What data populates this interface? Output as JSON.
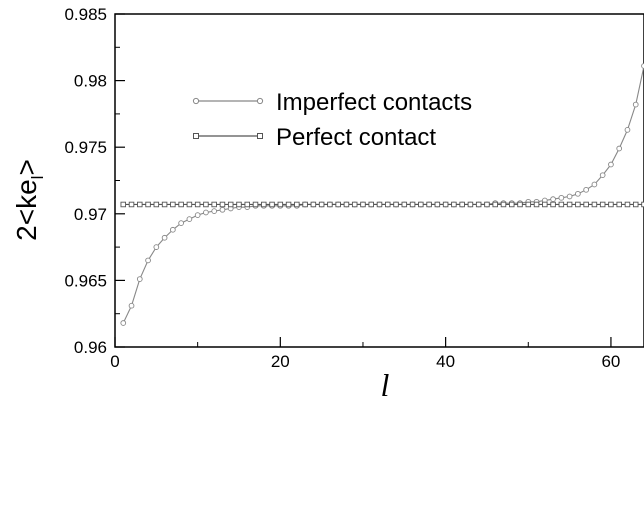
{
  "chart_data": {
    "type": "line",
    "title": "",
    "xlabel": "l",
    "ylabel_main": "2<ke",
    "ylabel_sub": "l",
    "ylabel_end": ">",
    "xlim": [
      0,
      64
    ],
    "ylim": [
      0.96,
      0.985
    ],
    "xticks": [
      0,
      20,
      40,
      60
    ],
    "yticks": [
      0.96,
      0.965,
      0.97,
      0.975,
      0.98,
      0.985
    ],
    "yticks_labels": [
      "0.96",
      "0.965",
      "0.97",
      "0.975",
      "0.98",
      "0.985"
    ],
    "grid": false,
    "legend_position": "top-left",
    "series": [
      {
        "name": "Imperfect contacts",
        "marker": "circle",
        "color": "#888888",
        "x": [
          1,
          2,
          3,
          4,
          5,
          6,
          7,
          8,
          9,
          10,
          11,
          12,
          13,
          14,
          15,
          16,
          17,
          18,
          19,
          20,
          21,
          22,
          23,
          24,
          25,
          26,
          27,
          28,
          29,
          30,
          31,
          32,
          33,
          34,
          35,
          36,
          37,
          38,
          39,
          40,
          41,
          42,
          43,
          44,
          45,
          46,
          47,
          48,
          49,
          50,
          51,
          52,
          53,
          54,
          55,
          56,
          57,
          58,
          59,
          60,
          61,
          62,
          63,
          64
        ],
        "y": [
          0.9618,
          0.9631,
          0.9651,
          0.9665,
          0.9675,
          0.9682,
          0.9688,
          0.9693,
          0.9696,
          0.9699,
          0.9701,
          0.9702,
          0.9703,
          0.9704,
          0.9705,
          0.9705,
          0.9706,
          0.9706,
          0.9706,
          0.9706,
          0.9706,
          0.9706,
          0.9707,
          0.9707,
          0.9707,
          0.9707,
          0.9707,
          0.9707,
          0.9707,
          0.9707,
          0.9707,
          0.9707,
          0.9707,
          0.9707,
          0.9707,
          0.9707,
          0.9707,
          0.9707,
          0.9707,
          0.9707,
          0.9707,
          0.9707,
          0.9707,
          0.9707,
          0.9707,
          0.9708,
          0.9708,
          0.9708,
          0.9708,
          0.9709,
          0.9709,
          0.971,
          0.9711,
          0.9712,
          0.9713,
          0.9715,
          0.9718,
          0.9722,
          0.9729,
          0.9737,
          0.9749,
          0.9763,
          0.9782,
          0.9811
        ]
      },
      {
        "name": "Perfect contact",
        "marker": "square",
        "color": "#555555",
        "x": [
          1,
          2,
          3,
          4,
          5,
          6,
          7,
          8,
          9,
          10,
          11,
          12,
          13,
          14,
          15,
          16,
          17,
          18,
          19,
          20,
          21,
          22,
          23,
          24,
          25,
          26,
          27,
          28,
          29,
          30,
          31,
          32,
          33,
          34,
          35,
          36,
          37,
          38,
          39,
          40,
          41,
          42,
          43,
          44,
          45,
          46,
          47,
          48,
          49,
          50,
          51,
          52,
          53,
          54,
          55,
          56,
          57,
          58,
          59,
          60,
          61,
          62,
          63,
          64
        ],
        "y": [
          0.9707,
          0.9707,
          0.9707,
          0.9707,
          0.9707,
          0.9707,
          0.9707,
          0.9707,
          0.9707,
          0.9707,
          0.9707,
          0.9707,
          0.9707,
          0.9707,
          0.9707,
          0.9707,
          0.9707,
          0.9707,
          0.9707,
          0.9707,
          0.9707,
          0.9707,
          0.9707,
          0.9707,
          0.9707,
          0.9707,
          0.9707,
          0.9707,
          0.9707,
          0.9707,
          0.9707,
          0.9707,
          0.9707,
          0.9707,
          0.9707,
          0.9707,
          0.9707,
          0.9707,
          0.9707,
          0.9707,
          0.9707,
          0.9707,
          0.9707,
          0.9707,
          0.9707,
          0.9707,
          0.9707,
          0.9707,
          0.9707,
          0.9707,
          0.9707,
          0.9707,
          0.9707,
          0.9707,
          0.9707,
          0.9707,
          0.9707,
          0.9707,
          0.9707,
          0.9707,
          0.9707,
          0.9707,
          0.9707,
          0.9707
        ]
      }
    ]
  }
}
